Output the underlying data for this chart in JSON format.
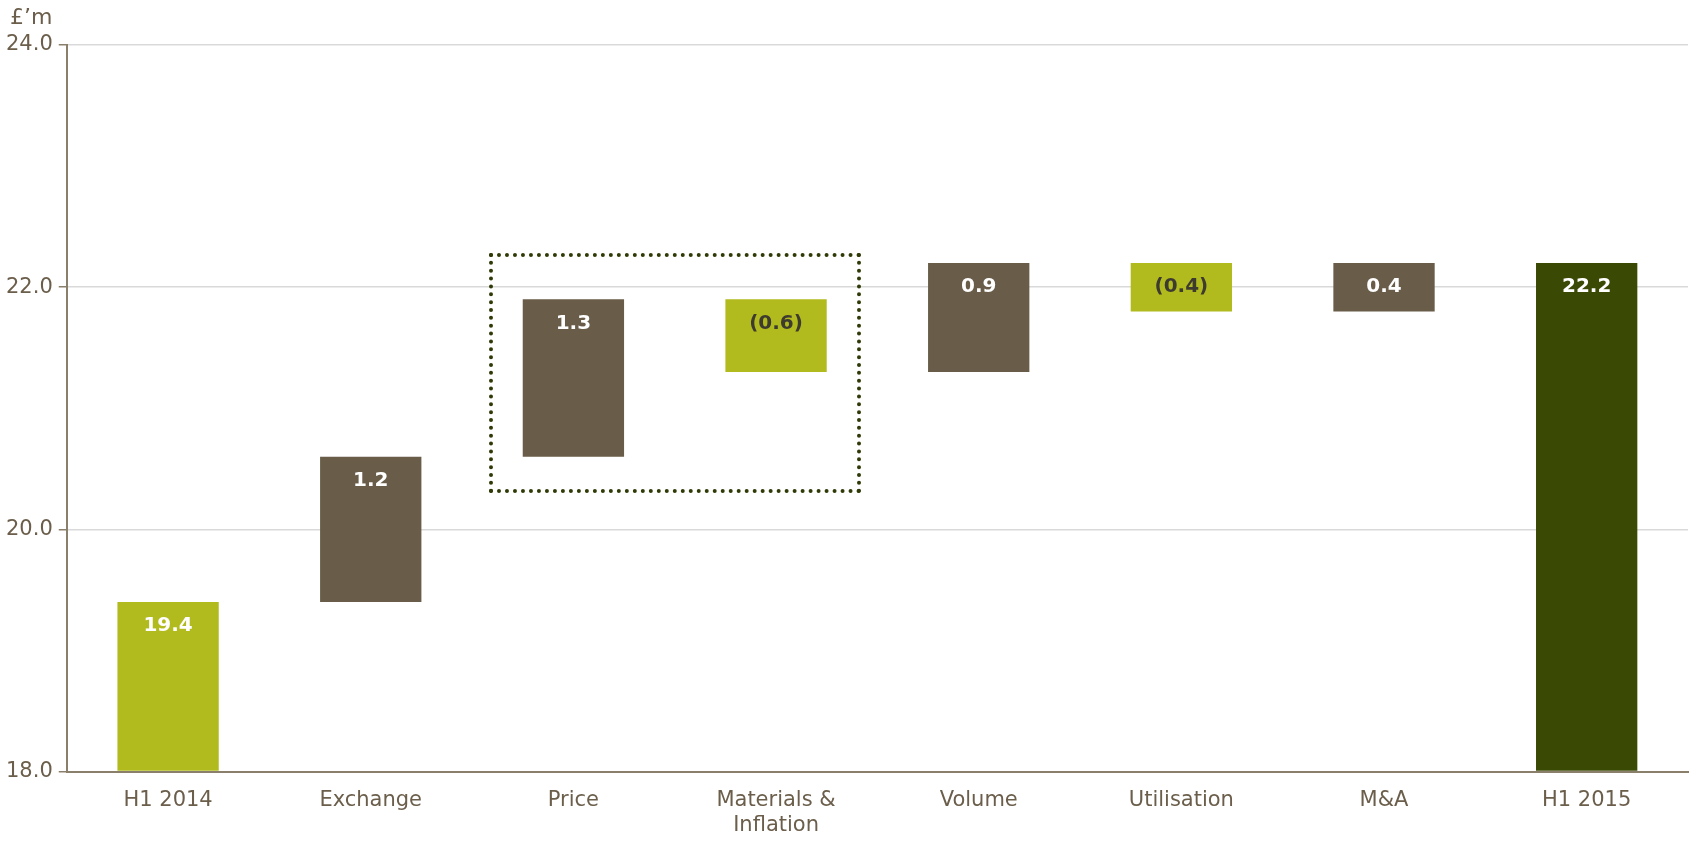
{
  "chart_data": {
    "type": "bar",
    "ylabel": "£’m",
    "categories": [
      "H1 2014",
      "Exchange",
      "Price",
      "Materials & Inflation",
      "Volume",
      "Utilisation",
      "M&A",
      "H1 2015"
    ],
    "values": [
      19.4,
      1.2,
      1.3,
      -0.6,
      0.9,
      -0.4,
      0.4,
      22.2
    ],
    "base": [
      null,
      19.4,
      20.6,
      21.9,
      21.3,
      22.2,
      21.8,
      null
    ],
    "colors": [
      "#b2bb1e",
      "#695d4a",
      "#695d4a",
      "#b2bb1e",
      "#695d4a",
      "#b2bb1e",
      "#695d4a",
      "#3a4a05"
    ],
    "value_labels": [
      "19.4",
      "1.2",
      "1.3",
      "(0.6)",
      "0.9",
      "(0.4)",
      "0.4",
      "22.2"
    ],
    "ylim": [
      18,
      24
    ],
    "yticks": [
      {
        "value": 18,
        "label": "18.0"
      },
      {
        "value": 20,
        "label": "20.0"
      },
      {
        "value": 22,
        "label": "22.0"
      },
      {
        "value": 24,
        "label": "24.0"
      }
    ],
    "grid": "y",
    "legend": false
  }
}
